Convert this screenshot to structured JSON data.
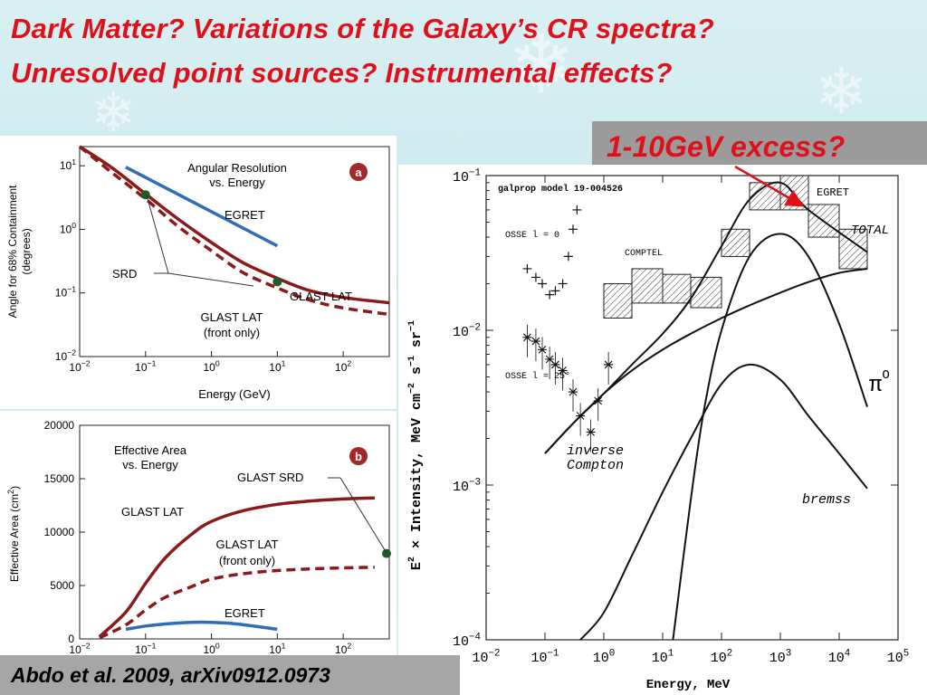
{
  "slide": {
    "title_line1": "Dark Matter? Variations of the Galaxy’s CR spectra?",
    "title_line2": "Unresolved point sources? Instrumental effects?",
    "excess_label": "1-10GeV excess?",
    "citation": "Abdo et al. 2009, arXiv0912.0973",
    "colors": {
      "title": "#e0101a",
      "excess_box": "#9b9b9b",
      "citation_box": "#a6a6a6"
    }
  },
  "chart_data": [
    {
      "type": "line",
      "panel_badge": "a",
      "title": "Angular Resolution\nvs. Energy",
      "title_lines": [
        "Angular Resolution",
        "vs. Energy"
      ],
      "xlabel": "Energy  (GeV)",
      "ylabel": "Angle for 68% Containment\n(degrees)",
      "ylabel_lines": [
        "Angle for 68% Containment",
        "(degrees)"
      ],
      "xscale": "log",
      "yscale": "log",
      "xlim": [
        0.01,
        500
      ],
      "ylim": [
        0.01,
        20
      ],
      "xticks": [
        {
          "b": "10",
          "e": "−2"
        },
        {
          "b": "10",
          "e": "−1"
        },
        {
          "b": "10",
          "e": "0"
        },
        {
          "b": "10",
          "e": "1"
        },
        {
          "b": "10",
          "e": "2"
        }
      ],
      "yticks": [
        {
          "b": "10",
          "e": "−2"
        },
        {
          "b": "10",
          "e": "−1"
        },
        {
          "b": "10",
          "e": "0"
        },
        {
          "b": "10",
          "e": "1"
        }
      ],
      "series": [
        {
          "name": "EGRET",
          "color": "#2f6db5",
          "style": "solid",
          "x": [
            0.05,
            10
          ],
          "y": [
            9.5,
            0.55
          ]
        },
        {
          "name": "GLAST LAT",
          "color": "#8b1a1a",
          "style": "solid",
          "x": [
            0.01,
            0.03,
            0.1,
            0.3,
            1,
            3,
            10,
            30,
            100,
            500
          ],
          "y": [
            22,
            9.5,
            3.6,
            1.5,
            0.62,
            0.3,
            0.17,
            0.11,
            0.085,
            0.07
          ]
        },
        {
          "name": "GLAST LAT (front only)",
          "color": "#8b1a1a",
          "style": "dashed",
          "x": [
            0.01,
            0.03,
            0.1,
            0.3,
            1,
            3,
            10,
            30,
            100,
            500
          ],
          "y": [
            20,
            8,
            3,
            1.15,
            0.46,
            0.21,
            0.12,
            0.078,
            0.058,
            0.046
          ]
        }
      ],
      "points": [
        {
          "name": "SRD",
          "x": 0.1,
          "y": 3.5,
          "color": "#1f5a2b"
        },
        {
          "name": "SRD",
          "x": 10,
          "y": 0.15,
          "color": "#1f5a2b"
        }
      ],
      "annotations": {
        "egret": "EGRET",
        "srd": "SRD",
        "lat": "GLAST LAT",
        "front": [
          "GLAST LAT",
          "(front only)"
        ]
      }
    },
    {
      "type": "line",
      "panel_badge": "b",
      "title": "Effective Area\nvs. Energy",
      "title_lines": [
        "Effective Area",
        "vs. Energy"
      ],
      "xlabel": "",
      "ylabel": "Effective Area  (cm²)",
      "ylabel_text": "Effective Area  (cm",
      "ylabel_sup": "2",
      "ylabel_end": ")",
      "xscale": "log",
      "yscale": "linear",
      "xlim": [
        0.01,
        500
      ],
      "ylim": [
        0,
        20000
      ],
      "xticks": [
        {
          "b": "10",
          "e": "−2"
        },
        {
          "b": "10",
          "e": "−1"
        },
        {
          "b": "10",
          "e": "0"
        },
        {
          "b": "10",
          "e": "1"
        },
        {
          "b": "10",
          "e": "2"
        }
      ],
      "yticks": [
        "0",
        "5000",
        "10000",
        "15000",
        "20000"
      ],
      "ytick_values": [
        0,
        5000,
        10000,
        15000,
        20000
      ],
      "series": [
        {
          "name": "GLAST LAT",
          "color": "#8b1a1a",
          "style": "solid",
          "x": [
            0.02,
            0.05,
            0.1,
            0.2,
            0.5,
            1,
            3,
            10,
            30,
            100,
            300
          ],
          "y": [
            200,
            2500,
            5200,
            7600,
            9800,
            11000,
            12000,
            12600,
            12900,
            13100,
            13200
          ]
        },
        {
          "name": "GLAST LAT (front only)",
          "color": "#8b1a1a",
          "style": "dashed",
          "x": [
            0.02,
            0.05,
            0.1,
            0.2,
            0.5,
            1,
            3,
            10,
            30,
            100,
            300
          ],
          "y": [
            100,
            1300,
            2700,
            3900,
            4900,
            5600,
            6100,
            6400,
            6550,
            6650,
            6700
          ]
        },
        {
          "name": "EGRET",
          "color": "#2f6db5",
          "style": "solid",
          "x": [
            0.05,
            0.1,
            0.2,
            0.5,
            1,
            2,
            5,
            10
          ],
          "y": [
            900,
            1200,
            1400,
            1550,
            1550,
            1450,
            1150,
            900
          ]
        }
      ],
      "points": [
        {
          "name": "GLAST SRD",
          "x": 500,
          "y": 8000,
          "color": "#1f5a2b"
        }
      ],
      "annotations": {
        "srd": "GLAST SRD",
        "lat": "GLAST LAT",
        "front": [
          "GLAST LAT",
          "(front only)"
        ],
        "egret": "EGRET"
      }
    },
    {
      "type": "line",
      "title": "galprop model 19-004526",
      "xlabel": "Energy, MeV",
      "ylabel": "E² × Intensity, MeV cm⁻² s⁻¹ sr⁻¹",
      "ylabel_parts": {
        "e": "E",
        "two": "2",
        "rest": " × Intensity, MeV cm",
        "m2": "−2",
        "s": " s",
        "m1a": "−1",
        "sr": " sr",
        "m1b": "−1"
      },
      "xscale": "log",
      "yscale": "log",
      "xlim": [
        0.01,
        100000
      ],
      "ylim": [
        0.0001,
        0.1
      ],
      "xticks": [
        {
          "b": "10",
          "e": "−2"
        },
        {
          "b": "10",
          "e": "−1"
        },
        {
          "b": "10",
          "e": "0"
        },
        {
          "b": "10",
          "e": "1"
        },
        {
          "b": "10",
          "e": "2"
        },
        {
          "b": "10",
          "e": "3"
        },
        {
          "b": "10",
          "e": "4"
        },
        {
          "b": "10",
          "e": "5"
        }
      ],
      "yticks": [
        {
          "b": "10",
          "e": "−4"
        },
        {
          "b": "10",
          "e": "−3"
        },
        {
          "b": "10",
          "e": "−2"
        },
        {
          "b": "10",
          "e": "−1"
        }
      ],
      "series": [
        {
          "name": "TOTAL",
          "x": [
            0.1,
            0.3,
            1,
            3,
            10,
            30,
            100,
            300,
            1000,
            3000,
            30000
          ],
          "y": [
            0.0016,
            0.0025,
            0.0039,
            0.006,
            0.0095,
            0.016,
            0.035,
            0.07,
            0.09,
            0.06,
            0.032
          ]
        },
        {
          "name": "inverse Compton",
          "x": [
            0.1,
            0.3,
            1,
            3,
            10,
            30,
            100,
            300,
            1000,
            3000,
            10000,
            30000
          ],
          "y": [
            0.0016,
            0.0025,
            0.0039,
            0.0055,
            0.0075,
            0.0095,
            0.012,
            0.0145,
            0.0175,
            0.0205,
            0.0235,
            0.025
          ]
        },
        {
          "name": "bremss",
          "x": [
            0.4,
            1,
            3,
            10,
            30,
            100,
            300,
            1000,
            3000,
            10000,
            30000
          ],
          "y": [
            0.0001,
            0.00015,
            0.00035,
            0.0009,
            0.002,
            0.0045,
            0.006,
            0.0048,
            0.0028,
            0.0016,
            0.00095
          ]
        },
        {
          "name": "π⁰",
          "x": [
            15,
            30,
            50,
            100,
            300,
            1000,
            3000,
            10000,
            30000
          ],
          "y": [
            0.0001,
            0.0008,
            0.003,
            0.01,
            0.03,
            0.042,
            0.03,
            0.011,
            0.0032
          ]
        }
      ],
      "labels": {
        "egret": "EGRET",
        "total": "TOTAL",
        "comptel": "COMPTEL",
        "osse0": "OSSE  l = 0",
        "osse25": "OSSE  l = 25°",
        "ic": [
          "inverse",
          "Compton"
        ],
        "bremss": "bremss",
        "pi": "π",
        "pi_sup": "O"
      }
    }
  ]
}
